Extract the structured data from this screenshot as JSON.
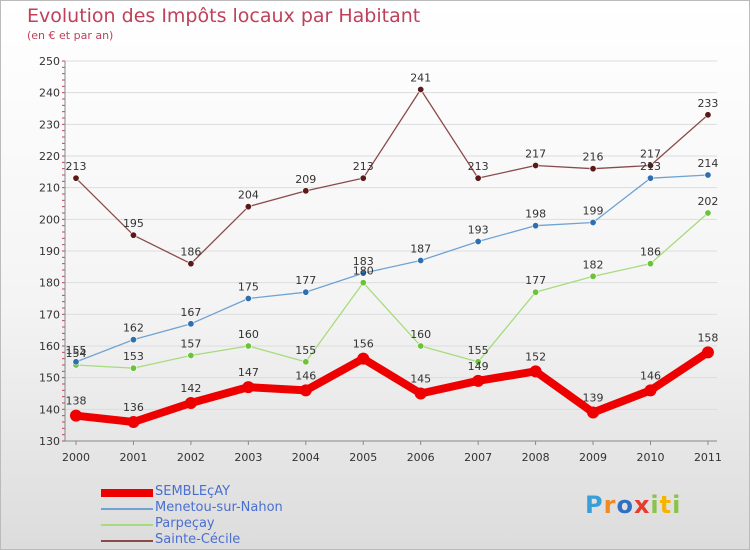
{
  "title": "Evolution des Impôts locaux par Habitant",
  "subtitle": "(en € et par an)",
  "brand": {
    "letters": [
      "P",
      "r",
      "o",
      "x",
      "i",
      "t",
      "i"
    ],
    "colors": [
      "#3a9fd8",
      "#f08a24",
      "#2f6fc4",
      "#e53c2e",
      "#8bc34a",
      "#f5b400",
      "#8bc34a"
    ]
  },
  "chart_data": {
    "type": "line",
    "title": "Evolution des Impôts locaux par Habitant",
    "subtitle": "(en € et par an)",
    "xlabel": "",
    "ylabel": "",
    "ylim": [
      130,
      250
    ],
    "yticks": [
      130,
      140,
      150,
      160,
      170,
      180,
      190,
      200,
      210,
      220,
      230,
      240,
      250
    ],
    "categories": [
      "2000",
      "2001",
      "2002",
      "2003",
      "2004",
      "2005",
      "2006",
      "2007",
      "2008",
      "2009",
      "2010",
      "2011"
    ],
    "grid": true,
    "legend_position": "bottom-left",
    "series": [
      {
        "name": "SEMBLEçAY",
        "color": "#ee0000",
        "point_color": "#ee0000",
        "width": 8,
        "radius": 6,
        "values": [
          138,
          136,
          142,
          147,
          146,
          156,
          145,
          149,
          152,
          139,
          146,
          158
        ],
        "labels": [
          "138",
          "136",
          "142",
          "147",
          "146",
          "156",
          "145",
          "149",
          "152",
          "139",
          "146",
          "158"
        ]
      },
      {
        "name": "Menetou-sur-Nahon",
        "color": "#6fa3d2",
        "point_color": "#2f6fb0",
        "width": 1.3,
        "radius": 3.2,
        "values": [
          155,
          162,
          167,
          175,
          177,
          183,
          187,
          193,
          198,
          199,
          213,
          214
        ],
        "labels": [
          "155",
          "162",
          "167",
          "175",
          "177",
          "183",
          "187",
          "193",
          "198",
          "199",
          "213",
          "214"
        ]
      },
      {
        "name": "Parpeçay",
        "color": "#a6dc7d",
        "point_color": "#6cc23a",
        "width": 1.3,
        "radius": 3.2,
        "values": [
          154,
          153,
          157,
          160,
          155,
          180,
          160,
          155,
          177,
          182,
          186,
          202
        ],
        "labels": [
          "154",
          "153",
          "157",
          "160",
          "155",
          "180",
          "160",
          "155",
          "177",
          "182",
          "186",
          "202"
        ]
      },
      {
        "name": "Sainte-Cécile",
        "color": "#8b4a4a",
        "point_color": "#5a1a1a",
        "width": 1.3,
        "radius": 3.2,
        "values": [
          213,
          195,
          186,
          204,
          209,
          213,
          241,
          213,
          217,
          216,
          217,
          233
        ],
        "labels": [
          "213",
          "195",
          "186",
          "204",
          "209",
          "213",
          "241",
          "213",
          "217",
          "216",
          "217",
          "233"
        ]
      }
    ]
  }
}
